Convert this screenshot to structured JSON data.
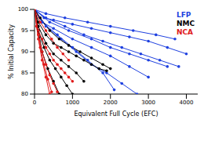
{
  "chart_data": {
    "type": "line",
    "x_label": "Equivalent Full Cycle (EFC)",
    "y_label": "% Initial Capacity",
    "xlim": [
      0,
      4300
    ],
    "xticks": [
      0,
      1000,
      2000,
      3000,
      4000
    ],
    "ylim": [
      80,
      100
    ],
    "yticks": [
      80,
      85,
      90,
      95,
      100
    ],
    "grid": false,
    "legend": "upper right",
    "marker": "circle",
    "line_style": "solid",
    "series": [
      {
        "name": "LFP",
        "color": "#1e40e0",
        "cells": [
          {
            "x": [
              0,
              250,
              500,
              1000,
              1500,
              2000,
              2500,
              3000,
              3500,
              4000
            ],
            "values": [
              100,
              98,
              97.5,
              96.5,
              95.5,
              94.5,
              93.5,
              92.5,
              91,
              89.5
            ]
          },
          {
            "x": [
              0,
              300,
              800,
              1300,
              1800,
              2300,
              2800,
              3300,
              3800
            ],
            "values": [
              100,
              98,
              96,
              94,
              92.5,
              91,
              89.5,
              88,
              86.5
            ]
          },
          {
            "x": [
              0,
              200,
              500,
              1000,
              1500,
              2000,
              2500,
              3000
            ],
            "values": [
              100,
              97,
              95.5,
              93,
              91,
              89,
              86.5,
              84
            ]
          },
          {
            "x": [
              0,
              300,
              700,
              1100,
              1500,
              1900,
              2300,
              2700
            ],
            "values": [
              100,
              96,
              93,
              90,
              87,
              85,
              82.5,
              80
            ]
          },
          {
            "x": [
              0,
              200,
              600,
              1000,
              1400,
              1800,
              2100
            ],
            "values": [
              100,
              97,
              94,
              91,
              88,
              85,
              81
            ]
          },
          {
            "x": [
              0,
              300,
              800,
              1400,
              2000,
              2600,
              3200,
              3700
            ],
            "values": [
              100,
              99,
              98,
              97,
              96,
              95,
              94,
              93
            ]
          },
          {
            "x": [
              0,
              400,
              900,
              1500,
              2000,
              2500,
              3000,
              3500
            ],
            "values": [
              100,
              97,
              95,
              93,
              91,
              89.5,
              88,
              86.5
            ]
          }
        ]
      },
      {
        "name": "NMC",
        "color": "#000000",
        "cells": [
          {
            "x": [
              0,
              100,
              300,
              500,
              700,
              900,
              1100,
              1300,
              1500,
              1700,
              1900
            ],
            "values": [
              100,
              97,
              94,
              92,
              91,
              90,
              89,
              88,
              87,
              86,
              85.5
            ]
          },
          {
            "x": [
              0,
              100,
              300,
              500,
              700,
              900,
              1100,
              1300
            ],
            "values": [
              100,
              96,
              92,
              89.5,
              88,
              86.5,
              85,
              83
            ]
          },
          {
            "x": [
              0,
              100,
              250,
              400,
              550,
              700,
              850,
              1000
            ],
            "values": [
              100,
              95,
              91,
              88,
              86,
              84,
              82,
              80
            ]
          },
          {
            "x": [
              0,
              150,
              400,
              650,
              900,
              1200,
              1500,
              1800,
              2000
            ],
            "values": [
              100,
              98,
              95,
              93,
              91.5,
              90,
              88.5,
              87,
              86
            ]
          },
          {
            "x": [
              0,
              100,
              200,
              350,
              500,
              650
            ],
            "values": [
              100,
              95,
              90,
              86,
              83,
              80
            ]
          }
        ]
      },
      {
        "name": "NCA",
        "color": "#e01b1b",
        "cells": [
          {
            "x": [
              0,
              100,
              200,
              300,
              400,
              500,
              600,
              700,
              800,
              900,
              1000
            ],
            "values": [
              100,
              95,
              93,
              91,
              89.5,
              88,
              87,
              86,
              85,
              84,
              83
            ]
          },
          {
            "x": [
              0,
              100,
              200,
              300,
              400,
              500,
              600
            ],
            "values": [
              100,
              94,
              90,
              87,
              84.5,
              82.5,
              80.5
            ]
          },
          {
            "x": [
              0,
              50,
              150,
              250,
              350,
              450
            ],
            "values": [
              100,
              96,
              91,
              87,
              83.5,
              80.5
            ]
          },
          {
            "x": [
              0,
              150,
              300,
              450,
              600,
              750,
              900
            ],
            "values": [
              100,
              97,
              95,
              93,
              91,
              89.5,
              88
            ]
          },
          {
            "x": [
              0,
              100,
              200,
              300,
              400
            ],
            "values": [
              100,
              93,
              88,
              84,
              80
            ]
          }
        ]
      }
    ]
  }
}
